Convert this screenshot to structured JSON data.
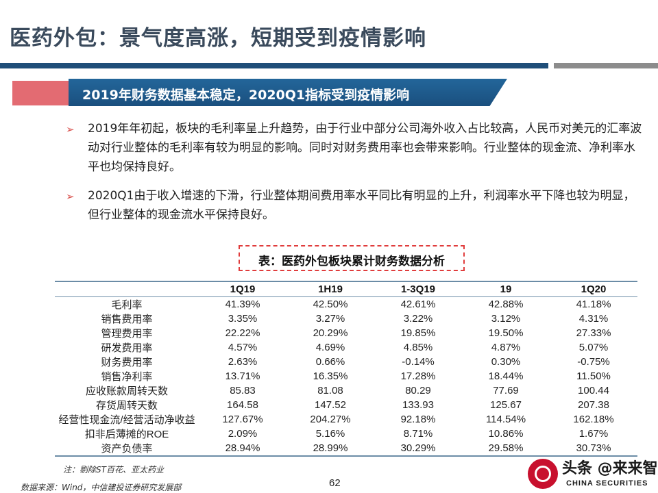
{
  "page": {
    "title": "医药外包：景气度高涨，短期受到疫情影响",
    "banner": "2019年财务数据基本稳定，2020Q1指标受到疫情影响",
    "bullets": [
      "2019年年初起，板块的毛利率呈上升趋势，由于行业中部分公司海外收入占比较高，人民币对美元的汇率波动对行业整体的毛利率有较为明显的影响。同时对财务费用率也会带来影响。行业整体的现金流、净利率水平也均保持良好。",
      "2020Q1由于收入增速的下滑，行业整体期间费用率水平同比有明显的上升，利润率水平下降也较为明显，但行业整体的现金流水平保持良好。"
    ],
    "bullet_icon": "arrow-right-icon",
    "page_number": "62"
  },
  "table": {
    "caption": "表：医药外包板块累计财务数据分析",
    "headers": [
      "",
      "1Q19",
      "1H19",
      "1-3Q19",
      "19",
      "1Q20"
    ],
    "rows": [
      [
        "毛利率",
        "41.39%",
        "42.50%",
        "42.61%",
        "42.88%",
        "41.18%"
      ],
      [
        "销售费用率",
        "3.35%",
        "3.27%",
        "3.22%",
        "3.12%",
        "4.31%"
      ],
      [
        "管理费用率",
        "22.22%",
        "20.29%",
        "19.85%",
        "19.50%",
        "27.33%"
      ],
      [
        "研发费用率",
        "4.57%",
        "4.69%",
        "4.85%",
        "4.87%",
        "5.07%"
      ],
      [
        "财务费用率",
        "2.63%",
        "0.66%",
        "-0.14%",
        "0.30%",
        "-0.75%"
      ],
      [
        "销售净利率",
        "13.71%",
        "16.35%",
        "17.28%",
        "18.44%",
        "11.50%"
      ],
      [
        "应收账款周转天数",
        "85.83",
        "81.08",
        "80.29",
        "77.69",
        "100.44"
      ],
      [
        "存货周转天数",
        "164.58",
        "147.52",
        "133.93",
        "125.67",
        "207.38"
      ],
      [
        "经营性现金流/经营活动净收益",
        "127.67%",
        "204.27%",
        "92.18%",
        "114.54%",
        "162.18%"
      ],
      [
        "扣非后薄摊的ROE",
        "2.09%",
        "5.16%",
        "8.71%",
        "10.86%",
        "1.67%"
      ],
      [
        "资产负债率",
        "28.94%",
        "28.99%",
        "30.29%",
        "29.58%",
        "30.73%"
      ]
    ],
    "note": "注：剔除ST百花、亚太药业",
    "source": "数据来源：Wind，中信建投证券研究发展部"
  },
  "logo": {
    "cn": "头条 @来来智库",
    "en": "CHINA SECURITIES",
    "color": "#c8102e"
  },
  "colors": {
    "title": "#3a4a5c",
    "banner_blue": "#1a4f7e",
    "banner_red": "#e36b72",
    "caption_border": "#e03c3c"
  }
}
